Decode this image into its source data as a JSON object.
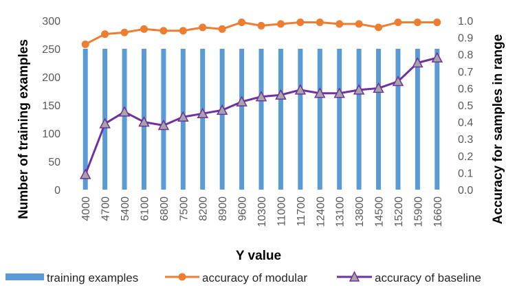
{
  "chart_data": {
    "type": "bar+line",
    "categories": [
      "4000",
      "4700",
      "5400",
      "6100",
      "6800",
      "7500",
      "8200",
      "8900",
      "9600",
      "10300",
      "11000",
      "11700",
      "12400",
      "13100",
      "13800",
      "14500",
      "15200",
      "15900",
      "16600"
    ],
    "xlabel": "Y value",
    "ylabel_left": "Number of training examples",
    "ylabel_right": "Accuracy for samples in range",
    "ylim_left": [
      0,
      300
    ],
    "yticks_left": [
      "0",
      "50",
      "100",
      "150",
      "200",
      "250",
      "300"
    ],
    "ylim_right": [
      0,
      1.0
    ],
    "yticks_right": [
      "0.0",
      "0.1",
      "0.2",
      "0.3",
      "0.4",
      "0.5",
      "0.6",
      "0.7",
      "0.8",
      "0.9",
      "1.0"
    ],
    "grid": false,
    "legend_position": "bottom",
    "series": [
      {
        "name": "training examples",
        "type": "bar",
        "axis": "left",
        "color": "#5B9BD5",
        "values": [
          250,
          250,
          250,
          250,
          250,
          250,
          250,
          250,
          250,
          250,
          250,
          250,
          250,
          250,
          250,
          250,
          250,
          250,
          250
        ]
      },
      {
        "name": "accuracy of modular",
        "type": "line",
        "axis": "right",
        "color": "#ED7D31",
        "marker": "circle",
        "values": [
          0.86,
          0.92,
          0.93,
          0.95,
          0.94,
          0.94,
          0.96,
          0.95,
          0.99,
          0.97,
          0.98,
          0.99,
          0.99,
          0.98,
          0.98,
          0.96,
          0.99,
          0.99,
          0.99
        ]
      },
      {
        "name": "accuracy of baseline",
        "type": "line",
        "axis": "right",
        "color": "#7030A0",
        "marker": "triangle",
        "marker_fill": "#A5A5A5",
        "values": [
          0.09,
          0.39,
          0.46,
          0.4,
          0.38,
          0.43,
          0.45,
          0.47,
          0.52,
          0.55,
          0.56,
          0.59,
          0.57,
          0.57,
          0.59,
          0.6,
          0.64,
          0.75,
          0.78
        ]
      }
    ]
  }
}
